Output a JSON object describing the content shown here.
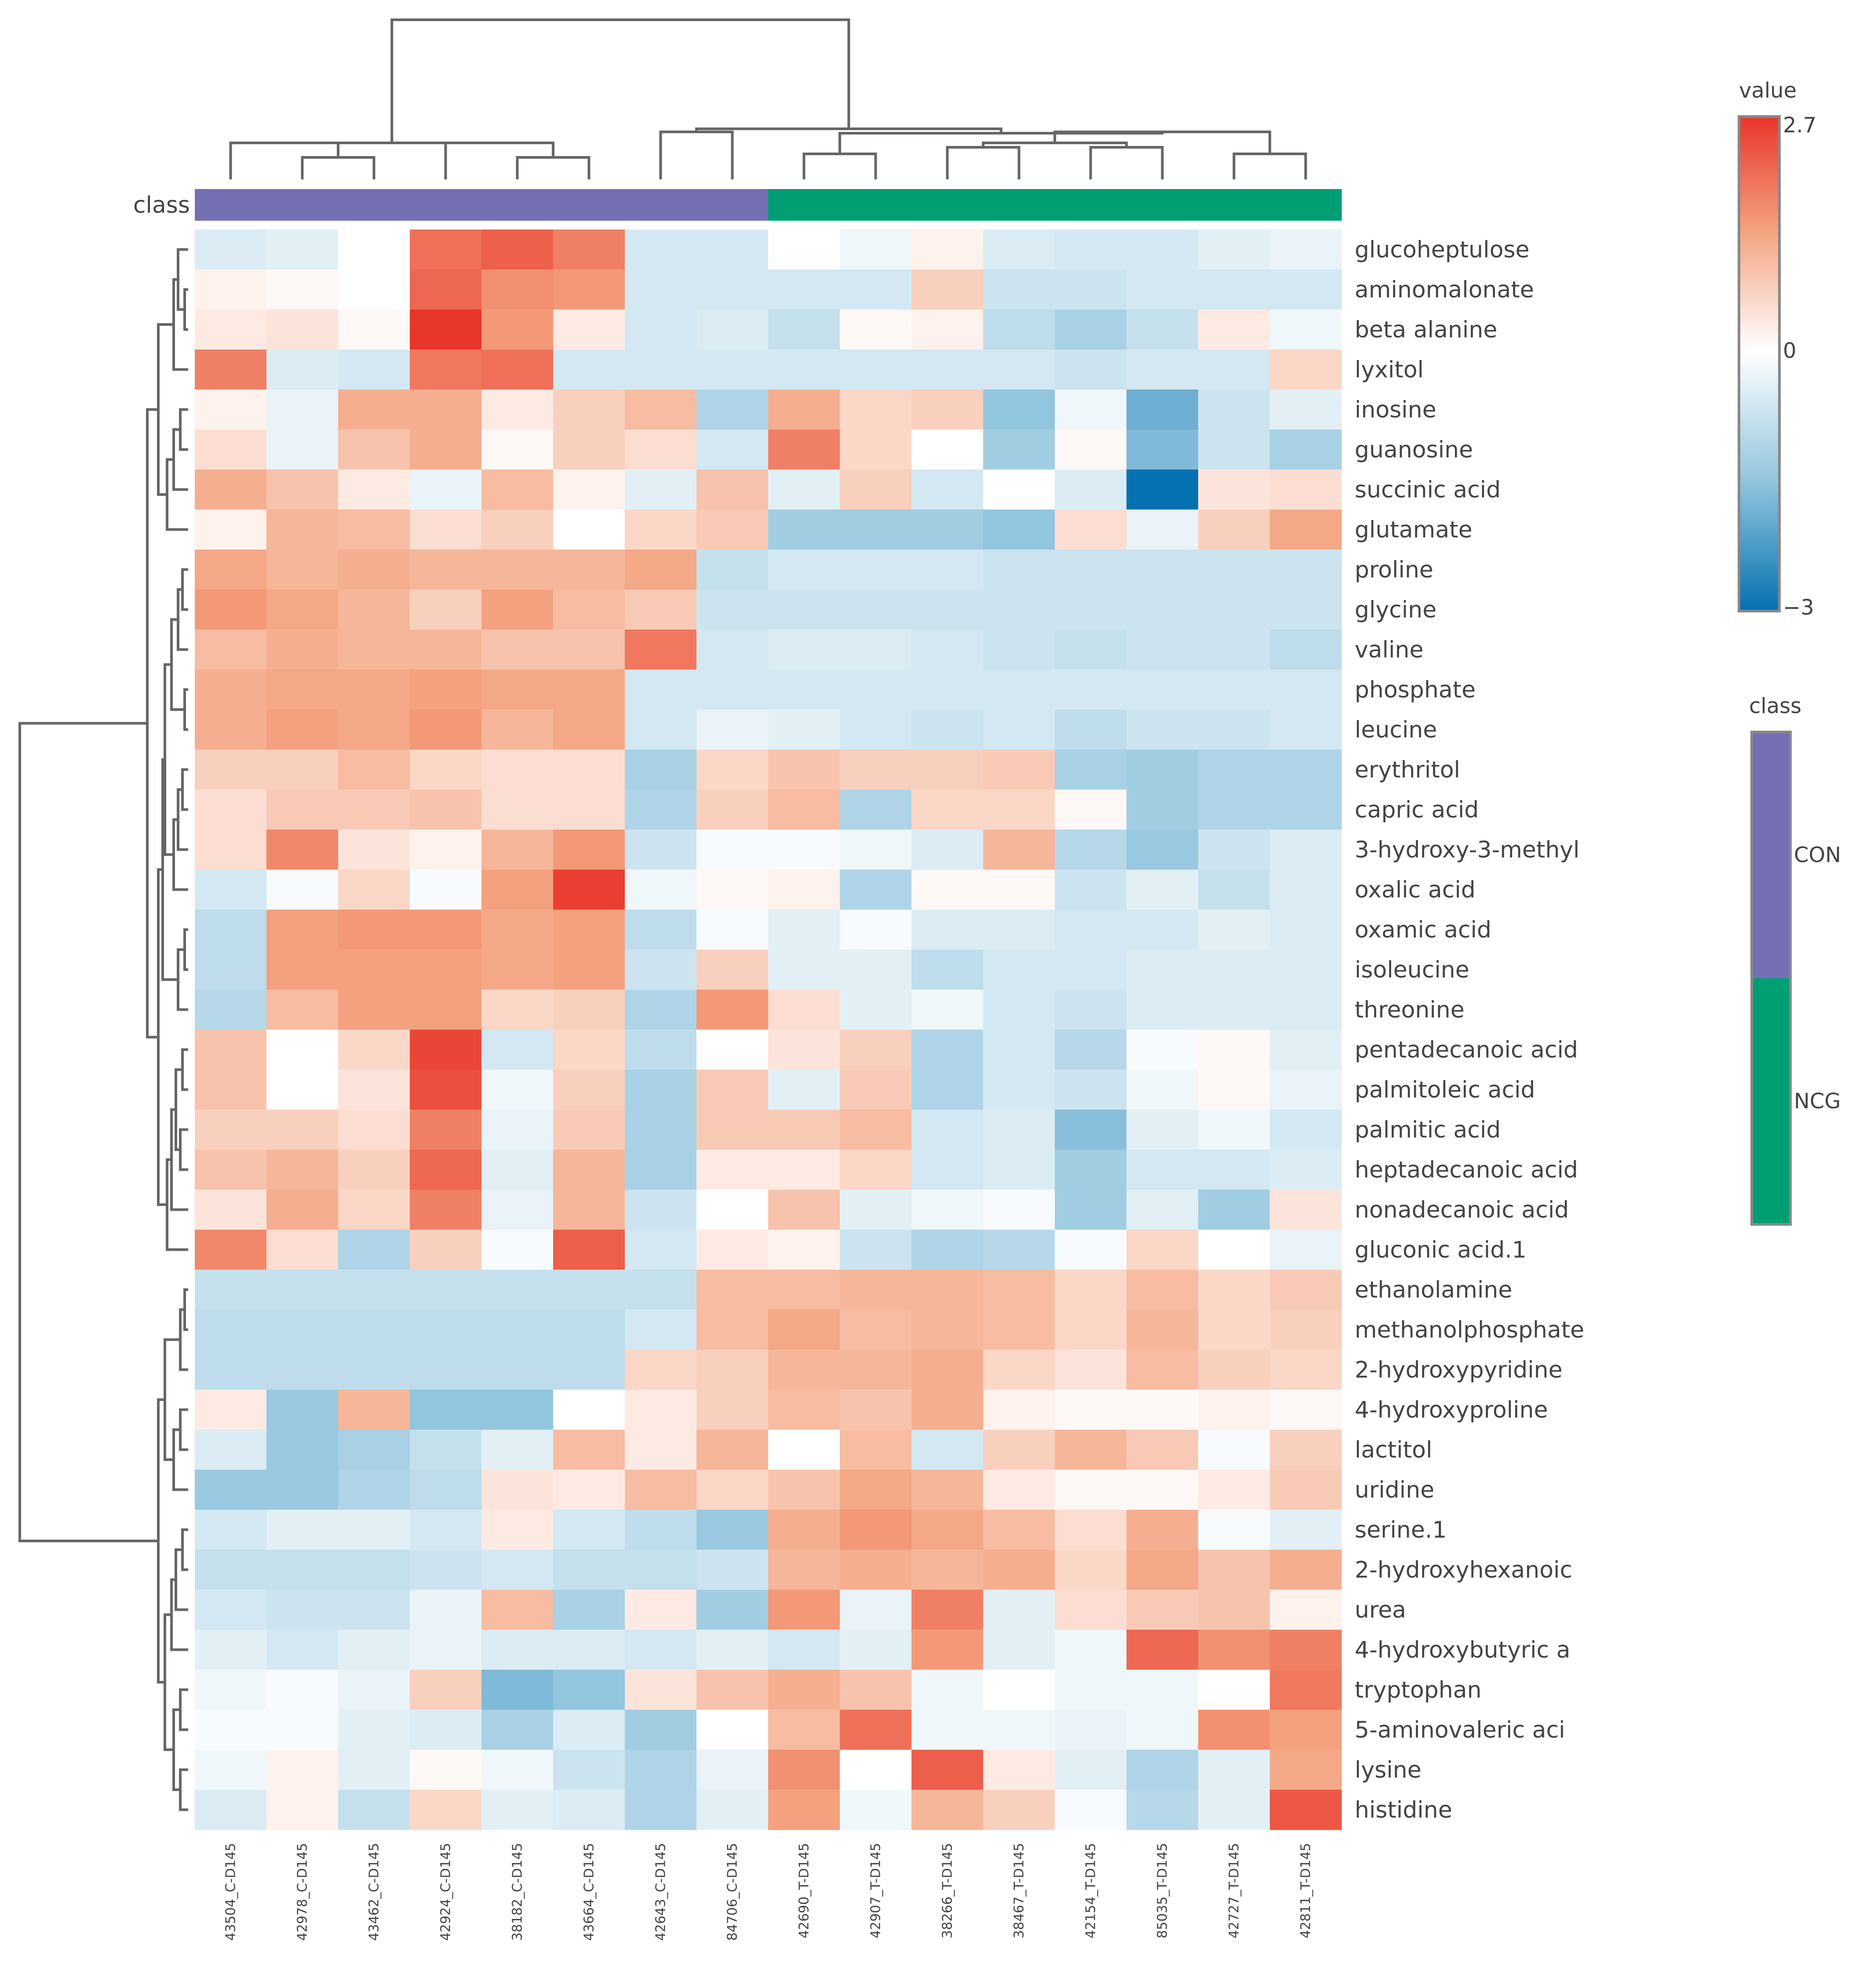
{
  "chart_data": {
    "type": "heatmap",
    "title": "",
    "annotation_label": "class",
    "columns": [
      "43504_C-D145",
      "42978_C-D145",
      "43462_C-D145",
      "42924_C-D145",
      "38182_C-D145",
      "43664_C-D145",
      "42643_C-D145",
      "84706_C-D145",
      "42690_T-D145",
      "42907_T-D145",
      "38266_T-D145",
      "38467_T-D145",
      "42154_T-D145",
      "85035_T-D145",
      "42727_T-D145",
      "42811_T-D145"
    ],
    "column_classes": [
      "CON",
      "CON",
      "CON",
      "CON",
      "CON",
      "CON",
      "CON",
      "CON",
      "NCG",
      "NCG",
      "NCG",
      "NCG",
      "NCG",
      "NCG",
      "NCG",
      "NCG"
    ],
    "rows": [
      "glucoheptulose",
      "aminomalonate",
      "beta alanine",
      "lyxitol",
      "inosine",
      "guanosine",
      "succinic acid",
      "glutamate",
      "proline",
      "glycine",
      "valine",
      "phosphate",
      "leucine",
      "erythritol",
      "capric acid",
      "3-hydroxy-3-methyl",
      "oxalic acid",
      "oxamic acid",
      "isoleucine",
      "threonine",
      "pentadecanoic acid",
      "palmitoleic acid",
      "palmitic acid",
      "heptadecanoic acid",
      "nonadecanoic acid",
      "gluconic acid.1",
      "ethanolamine",
      "methanolphosphate",
      "2-hydroxypyridine",
      "4-hydroxyproline",
      "lactitol",
      "uridine",
      "serine.1",
      "2-hydroxyhexanoic",
      "urea",
      "4-hydroxybutyric a",
      "tryptophan",
      "5-aminovaleric aci",
      "lysine",
      "histidine"
    ],
    "values": [
      [
        -0.5,
        -0.4,
        0.0,
        2.0,
        2.2,
        1.8,
        -0.6,
        -0.6,
        0.0,
        -0.2,
        0.2,
        -0.5,
        -0.6,
        -0.6,
        -0.4,
        -0.3
      ],
      [
        0.2,
        0.1,
        0.0,
        2.1,
        1.6,
        1.5,
        -0.6,
        -0.6,
        -0.6,
        -0.6,
        0.7,
        -0.7,
        -0.7,
        -0.6,
        -0.6,
        -0.6
      ],
      [
        0.3,
        0.4,
        0.1,
        2.7,
        1.5,
        0.3,
        -0.6,
        -0.5,
        -0.8,
        0.1,
        0.2,
        -0.9,
        -1.2,
        -0.8,
        0.3,
        -0.2
      ],
      [
        1.8,
        -0.5,
        -0.6,
        1.9,
        2.0,
        -0.6,
        -0.6,
        -0.6,
        -0.6,
        -0.6,
        -0.6,
        -0.6,
        -0.7,
        -0.6,
        -0.6,
        0.6
      ],
      [
        0.2,
        -0.3,
        1.2,
        1.2,
        0.3,
        0.7,
        1.0,
        -1.1,
        1.2,
        0.6,
        0.7,
        -1.5,
        -0.2,
        -1.9,
        -0.7,
        -0.4
      ],
      [
        0.5,
        -0.3,
        0.9,
        1.2,
        0.1,
        0.7,
        0.5,
        -0.6,
        1.8,
        0.6,
        0.0,
        -1.3,
        0.1,
        -1.7,
        -0.7,
        -1.2
      ],
      [
        1.2,
        0.9,
        0.3,
        -0.3,
        1.0,
        0.2,
        -0.4,
        0.9,
        -0.4,
        0.7,
        -0.6,
        0.0,
        -0.5,
        -3.0,
        0.4,
        0.5
      ],
      [
        0.2,
        1.1,
        1.0,
        0.5,
        0.7,
        0.0,
        0.6,
        0.8,
        -1.3,
        -1.3,
        -1.3,
        -1.5,
        0.5,
        -0.3,
        0.7,
        1.3
      ],
      [
        1.3,
        1.1,
        1.2,
        1.1,
        1.1,
        1.1,
        1.3,
        -0.8,
        -0.6,
        -0.6,
        -0.6,
        -0.7,
        -0.7,
        -0.7,
        -0.7,
        -0.7
      ],
      [
        1.5,
        1.3,
        1.1,
        0.7,
        1.4,
        1.0,
        0.8,
        -0.7,
        -0.7,
        -0.7,
        -0.7,
        -0.7,
        -0.7,
        -0.7,
        -0.7,
        -0.7
      ],
      [
        1.0,
        1.2,
        1.1,
        1.1,
        0.9,
        0.9,
        1.9,
        -0.6,
        -0.5,
        -0.5,
        -0.6,
        -0.7,
        -0.8,
        -0.7,
        -0.7,
        -0.9
      ],
      [
        1.2,
        1.3,
        1.3,
        1.4,
        1.3,
        1.3,
        -0.6,
        -0.6,
        -0.6,
        -0.6,
        -0.6,
        -0.6,
        -0.6,
        -0.6,
        -0.6,
        -0.6
      ],
      [
        1.2,
        1.4,
        1.3,
        1.5,
        1.1,
        1.3,
        -0.6,
        -0.3,
        -0.4,
        -0.6,
        -0.7,
        -0.6,
        -0.9,
        -0.7,
        -0.7,
        -0.6
      ],
      [
        0.7,
        0.7,
        1.0,
        0.6,
        0.5,
        0.5,
        -1.2,
        0.6,
        0.9,
        0.7,
        0.7,
        0.8,
        -1.2,
        -1.3,
        -1.1,
        -1.1
      ],
      [
        0.5,
        0.8,
        0.8,
        0.9,
        0.5,
        0.5,
        -1.1,
        0.7,
        1.0,
        -1.1,
        0.6,
        0.6,
        0.1,
        -1.3,
        -1.1,
        -1.1
      ],
      [
        0.5,
        1.7,
        0.4,
        0.2,
        1.1,
        1.5,
        -0.7,
        -0.1,
        -0.1,
        -0.2,
        -0.5,
        1.1,
        -1.0,
        -1.4,
        -0.7,
        -0.5
      ],
      [
        -0.6,
        -0.1,
        0.6,
        -0.1,
        1.4,
        2.6,
        -0.2,
        0.1,
        0.2,
        -1.1,
        0.1,
        0.1,
        -0.7,
        -0.4,
        -0.8,
        -0.5
      ],
      [
        -0.9,
        1.4,
        1.5,
        1.5,
        1.3,
        1.4,
        -0.9,
        -0.1,
        -0.4,
        -0.1,
        -0.5,
        -0.5,
        -0.6,
        -0.6,
        -0.4,
        -0.5
      ],
      [
        -0.9,
        1.4,
        1.4,
        1.4,
        1.3,
        1.4,
        -0.7,
        0.7,
        -0.4,
        -0.4,
        -0.9,
        -0.6,
        -0.6,
        -0.5,
        -0.5,
        -0.5
      ],
      [
        -1.0,
        1.0,
        1.4,
        1.4,
        0.6,
        0.7,
        -1.1,
        1.5,
        0.5,
        -0.4,
        -0.2,
        -0.6,
        -0.7,
        -0.5,
        -0.5,
        -0.5
      ],
      [
        0.9,
        0.0,
        0.6,
        2.5,
        -0.6,
        0.6,
        -0.9,
        0.0,
        0.4,
        0.7,
        -1.1,
        -0.6,
        -1.0,
        -0.1,
        0.1,
        -0.4
      ],
      [
        0.9,
        0.0,
        0.4,
        2.4,
        -0.2,
        0.7,
        -1.2,
        0.8,
        -0.4,
        0.8,
        -1.1,
        -0.6,
        -0.7,
        -0.2,
        0.1,
        -0.3
      ],
      [
        0.7,
        0.7,
        0.5,
        1.8,
        -0.3,
        0.8,
        -1.2,
        0.8,
        0.8,
        1.0,
        -0.6,
        -0.5,
        -1.6,
        -0.4,
        -0.2,
        -0.6
      ],
      [
        0.9,
        1.1,
        0.7,
        2.1,
        -0.4,
        1.1,
        -1.2,
        0.3,
        0.3,
        0.6,
        -0.6,
        -0.5,
        -1.3,
        -0.6,
        -0.6,
        -0.5
      ],
      [
        0.4,
        1.2,
        0.6,
        1.8,
        -0.3,
        1.1,
        -0.7,
        0.0,
        0.9,
        -0.4,
        -0.2,
        -0.1,
        -1.3,
        -0.4,
        -1.3,
        0.4
      ],
      [
        1.7,
        0.5,
        -1.1,
        0.7,
        -0.1,
        2.2,
        -0.6,
        0.3,
        0.2,
        -0.7,
        -1.1,
        -1.0,
        -0.1,
        0.6,
        0.0,
        -0.3
      ],
      [
        -0.8,
        -0.8,
        -0.8,
        -0.8,
        -0.8,
        -0.8,
        -0.8,
        1.0,
        1.0,
        1.1,
        1.1,
        1.0,
        0.6,
        1.0,
        0.6,
        0.8
      ],
      [
        -0.9,
        -0.9,
        -0.9,
        -0.9,
        -0.9,
        -0.9,
        -0.6,
        1.0,
        1.3,
        1.0,
        1.1,
        1.0,
        0.6,
        1.1,
        0.6,
        0.7
      ],
      [
        -0.9,
        -0.9,
        -0.9,
        -0.9,
        -0.9,
        -0.9,
        0.6,
        0.7,
        1.1,
        1.1,
        1.2,
        0.6,
        0.4,
        1.0,
        0.7,
        0.6
      ],
      [
        0.3,
        -1.4,
        1.1,
        -1.5,
        -1.5,
        0.0,
        0.3,
        0.7,
        1.0,
        0.9,
        1.2,
        0.2,
        0.1,
        0.1,
        0.2,
        0.1
      ],
      [
        -0.5,
        -1.4,
        -1.2,
        -0.8,
        -0.4,
        1.0,
        0.3,
        1.1,
        0.0,
        1.0,
        -0.6,
        0.7,
        1.1,
        0.8,
        -0.1,
        0.7
      ],
      [
        -1.4,
        -1.4,
        -1.1,
        -0.9,
        0.4,
        0.3,
        1.0,
        0.6,
        0.9,
        1.3,
        1.1,
        0.3,
        0.1,
        0.1,
        0.3,
        0.8
      ],
      [
        -0.6,
        -0.4,
        -0.4,
        -0.6,
        0.3,
        -0.6,
        -0.9,
        -1.4,
        1.2,
        1.5,
        1.3,
        1.0,
        0.5,
        1.2,
        -0.1,
        -0.4
      ],
      [
        -0.8,
        -0.8,
        -0.8,
        -0.7,
        -0.6,
        -0.8,
        -0.8,
        -0.7,
        1.1,
        1.2,
        1.1,
        1.2,
        0.6,
        1.3,
        0.9,
        1.2
      ],
      [
        -0.6,
        -0.7,
        -0.7,
        -0.3,
        1.0,
        -1.2,
        0.3,
        -1.3,
        1.5,
        -0.3,
        1.8,
        -0.4,
        0.5,
        0.8,
        0.9,
        0.2
      ],
      [
        -0.4,
        -0.6,
        -0.4,
        -0.3,
        -0.5,
        -0.5,
        -0.6,
        -0.4,
        -0.6,
        -0.4,
        1.5,
        -0.4,
        -0.2,
        2.1,
        1.6,
        1.8
      ],
      [
        -0.2,
        -0.1,
        -0.3,
        0.7,
        -1.7,
        -1.5,
        0.4,
        0.9,
        1.2,
        0.9,
        -0.2,
        0.0,
        -0.2,
        -0.2,
        0.0,
        1.9
      ],
      [
        -0.1,
        -0.1,
        -0.4,
        -0.5,
        -1.2,
        -0.5,
        -1.3,
        0.0,
        1.0,
        2.0,
        -0.2,
        -0.2,
        -0.3,
        -0.2,
        1.6,
        1.4
      ],
      [
        -0.2,
        0.2,
        -0.4,
        0.1,
        -0.2,
        -0.7,
        -1.1,
        -0.3,
        1.6,
        0.0,
        2.2,
        0.3,
        -0.4,
        -1.1,
        -0.4,
        1.3
      ],
      [
        -0.5,
        0.2,
        -0.8,
        0.6,
        -0.4,
        -0.5,
        -1.1,
        -0.4,
        1.4,
        -0.2,
        1.1,
        0.7,
        -0.1,
        -1.0,
        -0.4,
        2.3
      ]
    ],
    "zlim": [
      -3,
      2.7
    ]
  },
  "colorbar": {
    "title": "value",
    "tick_labels": [
      "2.7",
      "0",
      "−3"
    ],
    "colors": {
      "low": "#0571b0",
      "mid_low": "#92c5de",
      "mid": "#ffffff",
      "mid_high": "#f4a582",
      "high": "#e8362b"
    }
  },
  "class_legend": {
    "title": "class",
    "items": [
      {
        "label": "CON",
        "color": "#7570b3"
      },
      {
        "label": "NCG",
        "color": "#009e73"
      }
    ]
  },
  "column_dendrogram": {
    "leaf_order": [
      "43504_C-D145",
      "42978_C-D145",
      "43462_C-D145",
      "42924_C-D145",
      "38182_C-D145",
      "43664_C-D145",
      "42643_C-D145",
      "84706_C-D145",
      "42690_T-D145",
      "42907_T-D145",
      "38266_T-D145",
      "38467_T-D145",
      "42154_T-D145",
      "85035_T-D145",
      "42727_T-D145",
      "42811_T-D145"
    ]
  }
}
